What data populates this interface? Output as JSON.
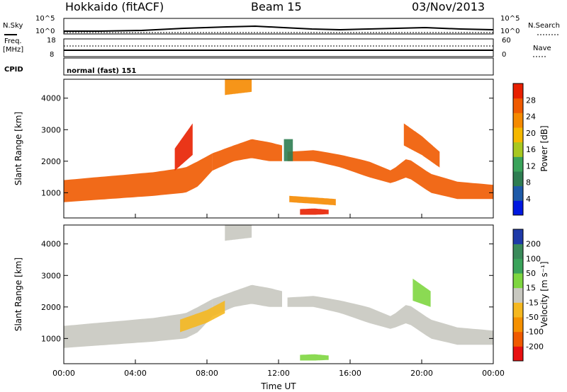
{
  "header": {
    "station": "Hokkaido (fitACF)",
    "beam": "Beam 15",
    "date": "03/Nov/2013"
  },
  "noise_panel": {
    "left_label": "N.Sky",
    "right_label": "N.Search",
    "yticks": [
      "10^5",
      "10^0"
    ]
  },
  "freq_panel": {
    "left_label_1": "Freq.",
    "left_label_2": "[MHz]",
    "left_ticks": [
      "18",
      "8"
    ],
    "right_label": "Nave",
    "right_ticks": [
      "60",
      "0"
    ]
  },
  "cpid_panel": {
    "label": "CPID",
    "mode": "normal (fast) 151"
  },
  "colors": {
    "power": [
      "#0018e0",
      "#1e5aa8",
      "#2e7d52",
      "#3aa35a",
      "#a8c820",
      "#f5b800",
      "#f58a00",
      "#f05a00",
      "#e82000"
    ],
    "velocity": [
      "#e81010",
      "#f05a00",
      "#f59000",
      "#f5b820",
      "#c8c8c0",
      "#7ed640",
      "#3aa35a",
      "#3a8a5a",
      "#1e3aa8"
    ]
  },
  "chart_data": [
    {
      "type": "heatmap",
      "name": "power",
      "ylabel": "Slant Range [km]",
      "ylim": [
        200,
        4600
      ],
      "yticks": [
        "1000",
        "2000",
        "3000",
        "4000"
      ],
      "xlim": [
        0,
        24
      ],
      "colorbar_label": "Power [dB]",
      "colorbar_ticks": [
        "4",
        "8",
        "12",
        "16",
        "20",
        "24",
        "28"
      ],
      "colorbar_range": [
        0,
        30
      ],
      "bands": [
        {
          "t": [
            0,
            3,
            5,
            6.8,
            7.5,
            8.3
          ],
          "lo": [
            700,
            820,
            900,
            1000,
            1200,
            1700
          ],
          "hi": [
            1400,
            1550,
            1650,
            1800,
            2000,
            2250
          ],
          "value": 26
        },
        {
          "t": [
            8.3,
            9.5,
            10.5,
            11.5,
            12.2
          ],
          "lo": [
            1700,
            2000,
            2100,
            2000,
            2000
          ],
          "hi": [
            2250,
            2500,
            2700,
            2600,
            2500
          ],
          "value": 24
        },
        {
          "t": [
            12.5,
            14,
            15.5,
            17,
            18.3,
            19.2,
            20.5,
            22,
            24
          ],
          "lo": [
            2000,
            2000,
            1800,
            1500,
            1300,
            1500,
            1000,
            800,
            800
          ],
          "hi": [
            2300,
            2350,
            2200,
            2000,
            1700,
            2100,
            1600,
            1350,
            1250
          ],
          "value": 25
        },
        {
          "t": [
            13.2,
            14,
            14.8
          ],
          "lo": [
            300,
            300,
            320
          ],
          "hi": [
            480,
            500,
            460
          ],
          "value": 27
        },
        {
          "t": [
            12.6,
            14,
            15.2
          ],
          "lo": [
            700,
            650,
            600
          ],
          "hi": [
            900,
            850,
            800
          ],
          "value": 20
        },
        {
          "t": [
            6.2,
            7.2
          ],
          "lo": [
            1700,
            2200
          ],
          "hi": [
            2400,
            3200
          ],
          "value": 28
        },
        {
          "t": [
            19,
            20,
            21
          ],
          "lo": [
            2500,
            2200,
            1800
          ],
          "hi": [
            3200,
            2800,
            2300
          ],
          "value": 26
        },
        {
          "t": [
            9,
            10.5
          ],
          "lo": [
            4100,
            4200
          ],
          "hi": [
            4600,
            4600
          ],
          "value": 22
        },
        {
          "t": [
            12.3,
            12.8
          ],
          "lo": [
            2000,
            2000
          ],
          "hi": [
            2700,
            2700
          ],
          "value": 8
        }
      ]
    },
    {
      "type": "heatmap",
      "name": "velocity",
      "ylabel": "Slant Range [km]",
      "xlabel": "Time UT",
      "ylim": [
        200,
        4600
      ],
      "yticks": [
        "1000",
        "2000",
        "3000",
        "4000"
      ],
      "xlim": [
        0,
        24
      ],
      "xticks": [
        "00:00",
        "04:00",
        "08:00",
        "12:00",
        "16:00",
        "20:00",
        "00:00"
      ],
      "colorbar_label": "Velocity [m s⁻¹]",
      "colorbar_ticks": [
        "-200",
        "-100",
        "-50",
        "-15",
        "15",
        "50",
        "100",
        "200"
      ],
      "colorbar_range": [
        -250,
        250
      ],
      "bands": [
        {
          "t": [
            0,
            3,
            5,
            6.8,
            7.5,
            8.3
          ],
          "lo": [
            700,
            820,
            900,
            1000,
            1200,
            1700
          ],
          "hi": [
            1400,
            1550,
            1650,
            1800,
            2000,
            2250
          ],
          "value": 0
        },
        {
          "t": [
            8.3,
            9.5,
            10.5,
            11.5,
            12.2
          ],
          "lo": [
            1700,
            2000,
            2100,
            2000,
            2000
          ],
          "hi": [
            2250,
            2500,
            2700,
            2600,
            2500
          ],
          "value": 0
        },
        {
          "t": [
            12.5,
            14,
            15.5,
            17,
            18.3,
            19.2,
            20.5,
            22,
            24
          ],
          "lo": [
            2000,
            2000,
            1800,
            1500,
            1300,
            1500,
            1000,
            800,
            800
          ],
          "hi": [
            2300,
            2350,
            2200,
            2000,
            1700,
            2100,
            1600,
            1350,
            1250
          ],
          "value": 0
        },
        {
          "t": [
            13.2,
            14,
            14.8
          ],
          "lo": [
            300,
            300,
            320
          ],
          "hi": [
            480,
            500,
            460
          ],
          "value": 30
        },
        {
          "t": [
            6.5,
            8,
            9
          ],
          "lo": [
            1200,
            1500,
            1800
          ],
          "hi": [
            1600,
            1900,
            2200
          ],
          "value": -40
        },
        {
          "t": [
            19.5,
            20.5
          ],
          "lo": [
            2200,
            2000
          ],
          "hi": [
            2900,
            2500
          ],
          "value": 30
        },
        {
          "t": [
            9,
            10.5
          ],
          "lo": [
            4100,
            4200
          ],
          "hi": [
            4600,
            4600
          ],
          "value": 0
        }
      ]
    }
  ]
}
